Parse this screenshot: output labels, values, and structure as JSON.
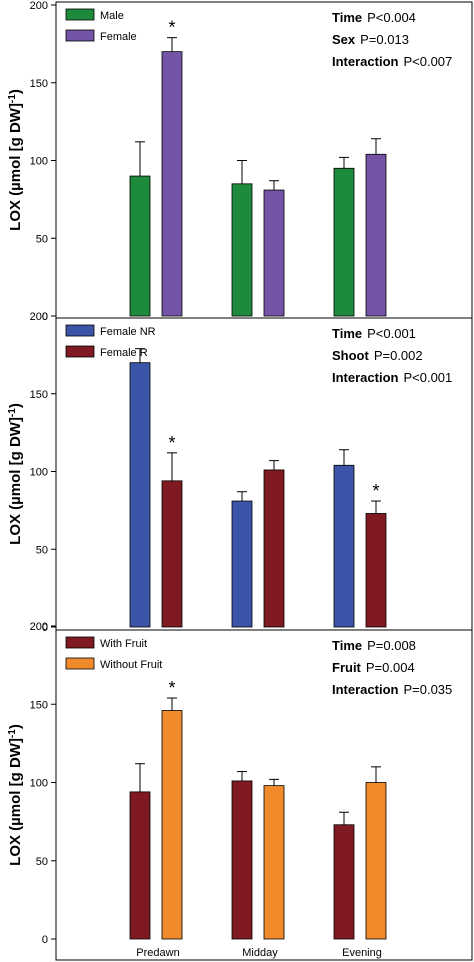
{
  "chart_data": [
    {
      "type": "bar",
      "categories": [
        "Predawn",
        "Midday",
        "Evening"
      ],
      "ylabel": "LOX (µmol [g DW]",
      "ylabel_sup": "-1",
      "ylabel_close": ")",
      "ylim": [
        0,
        200
      ],
      "yticks": [
        0,
        50,
        100,
        150,
        200
      ],
      "legend_position": "top-left",
      "series": [
        {
          "name": "Male",
          "color": "#1e8a3c",
          "values": [
            90,
            85,
            95
          ],
          "errors": [
            22,
            15,
            7
          ]
        },
        {
          "name": "Female",
          "color": "#7454a6",
          "values": [
            170,
            81,
            104
          ],
          "errors": [
            9,
            6,
            10
          ]
        }
      ],
      "significance": [
        {
          "category": 0,
          "series": 1,
          "label": "*"
        }
      ],
      "stats": [
        {
          "term": "Time",
          "p_text": "P<0.004"
        },
        {
          "term": "Sex",
          "p_text": "P=0.013"
        },
        {
          "term": "Interaction",
          "p_text": "P<0.007"
        }
      ]
    },
    {
      "type": "bar",
      "categories": [
        "Predawn",
        "Midday",
        "Evening"
      ],
      "ylabel": "LOX (µmol [g DW]",
      "ylabel_sup": "-1",
      "ylabel_close": ")",
      "ylim": [
        0,
        200
      ],
      "yticks": [
        0,
        50,
        100,
        150,
        200
      ],
      "legend_position": "top-left",
      "series": [
        {
          "name": "Female NR",
          "color": "#3b55a8",
          "values": [
            170,
            81,
            104
          ],
          "errors": [
            9,
            6,
            10
          ]
        },
        {
          "name": "Female R",
          "color": "#7f1a22",
          "values": [
            94,
            101,
            73
          ],
          "errors": [
            18,
            6,
            8
          ]
        }
      ],
      "significance": [
        {
          "category": 0,
          "series": 1,
          "label": "*"
        },
        {
          "category": 2,
          "series": 1,
          "label": "*"
        }
      ],
      "stats": [
        {
          "term": "Time",
          "p_text": "P<0.001"
        },
        {
          "term": "Shoot",
          "p_text": "P=0.002"
        },
        {
          "term": "Interaction",
          "p_text": "P<0.001"
        }
      ]
    },
    {
      "type": "bar",
      "categories": [
        "Predawn",
        "Midday",
        "Evening"
      ],
      "ylabel": "LOX (µmol [g DW]",
      "ylabel_sup": "-1",
      "ylabel_close": ")",
      "ylim": [
        0,
        200
      ],
      "yticks": [
        0,
        50,
        100,
        150,
        200
      ],
      "legend_position": "top-left",
      "series": [
        {
          "name": "With Fruit",
          "color": "#7f1a22",
          "values": [
            94,
            101,
            73
          ],
          "errors": [
            18,
            6,
            8
          ]
        },
        {
          "name": "Without Fruit",
          "color": "#f08a2a",
          "values": [
            146,
            98,
            100
          ],
          "errors": [
            8,
            4,
            10
          ]
        }
      ],
      "significance": [
        {
          "category": 0,
          "series": 1,
          "label": "*"
        }
      ],
      "stats": [
        {
          "term": "Time",
          "p_text": "P=0.008"
        },
        {
          "term": "Fruit",
          "p_text": "P=0.004"
        },
        {
          "term": "Interaction",
          "p_text": "P=0.035"
        }
      ]
    }
  ]
}
